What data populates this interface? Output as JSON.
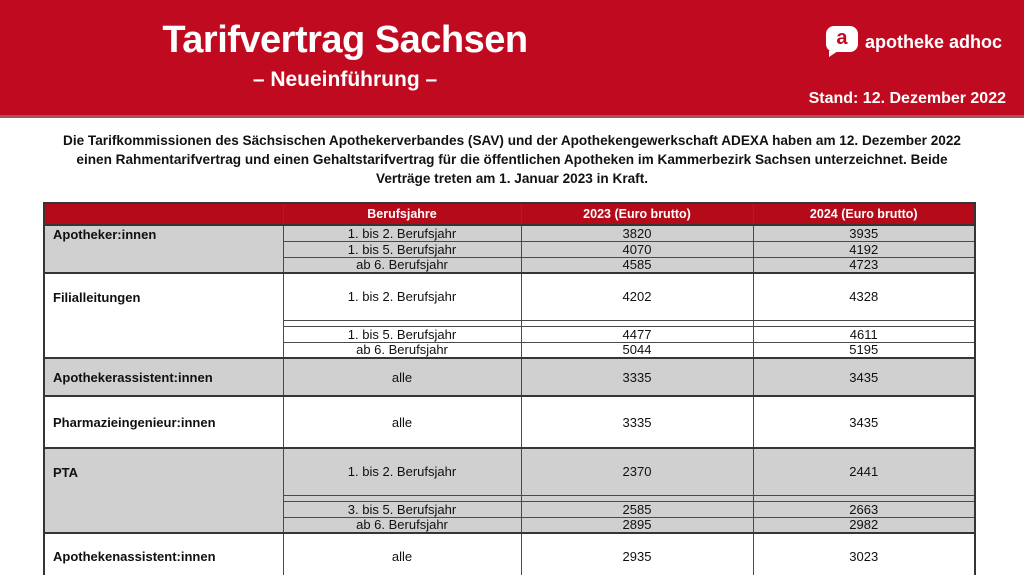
{
  "banner": {
    "title": "Tarifvertrag Sachsen",
    "subtitle": "– Neueinführung –",
    "brand": "apotheke adhoc",
    "brand_icon_letter": "a",
    "stand": "Stand: 12. Dezember 2022"
  },
  "intro_lines": [
    "Die Tarifkommissionen des Sächsischen Apothekerverbandes (SAV) und der Apothekengewerkschaft ADEXA haben am 12. Dezember 2022",
    "einen Rahmentarifvertrag und einen Gehaltstarifvertrag für die öffentlichen Apotheken im Kammerbezirk Sachsen unterzeichnet. Beide",
    "Verträge treten am 1. Januar 2023 in Kraft."
  ],
  "colors": {
    "banner_red": "#c00a1f",
    "table_header_red": "#b40a19",
    "row_gray": "#d1d0d0",
    "row_white": "#ffffff"
  },
  "chart_data": {
    "type": "table",
    "title": "Tarifvertrag Sachsen – Neueinführung",
    "columns": [
      "",
      "Berufsjahre",
      "2023 (Euro brutto)",
      "2024 (Euro brutto)"
    ],
    "groups": [
      {
        "label": "Apotheker:innen",
        "shade": "gray",
        "rows": [
          {
            "berufsjahre": "1. bis 2. Berufsjahr",
            "v2023": "3820",
            "v2024": "3935"
          },
          {
            "berufsjahre": "1. bis 5. Berufsjahr",
            "v2023": "4070",
            "v2024": "4192"
          },
          {
            "berufsjahre": "ab 6. Berufsjahr",
            "v2023": "4585",
            "v2024": "4723"
          }
        ]
      },
      {
        "label": "Filialleitungen",
        "shade": "white",
        "rows": [
          {
            "berufsjahre": "1. bis 2. Berufsjahr",
            "v2023": "4202",
            "v2024": "4328"
          },
          {
            "berufsjahre": "1. bis 5. Berufsjahr",
            "v2023": "4477",
            "v2024": "4611"
          },
          {
            "berufsjahre": "ab 6. Berufsjahr",
            "v2023": "5044",
            "v2024": "5195"
          }
        ]
      },
      {
        "label": "Apothekerassistent:innen",
        "shade": "gray",
        "rows": [
          {
            "berufsjahre": "alle",
            "v2023": "3335",
            "v2024": "3435"
          }
        ]
      },
      {
        "label": "Pharmazieingenieur:innen",
        "shade": "white",
        "rows": [
          {
            "berufsjahre": "alle",
            "v2023": "3335",
            "v2024": "3435"
          }
        ]
      },
      {
        "label": "PTA",
        "shade": "gray",
        "rows": [
          {
            "berufsjahre": "1. bis 2. Berufsjahr",
            "v2023": "2370",
            "v2024": "2441"
          },
          {
            "berufsjahre": "3. bis 5. Berufsjahr",
            "v2023": "2585",
            "v2024": "2663"
          },
          {
            "berufsjahre": "ab 6. Berufsjahr",
            "v2023": "2895",
            "v2024": "2982"
          }
        ]
      },
      {
        "label": "Apothekenassistent:innen",
        "shade": "white",
        "rows": [
          {
            "berufsjahre": "alle",
            "v2023": "2935",
            "v2024": "3023"
          }
        ]
      }
    ]
  }
}
